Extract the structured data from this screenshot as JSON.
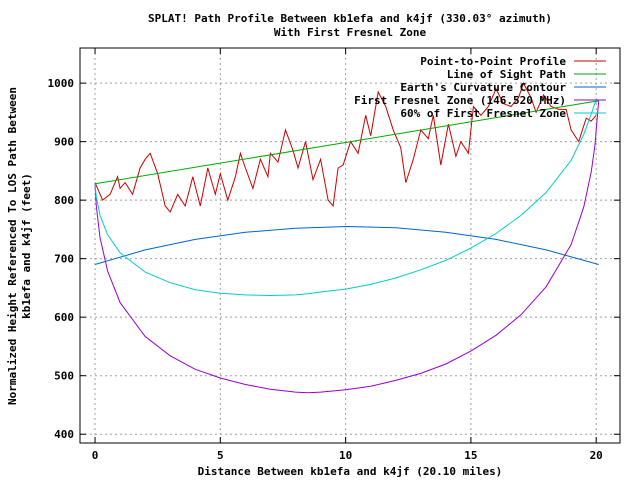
{
  "chart_data": {
    "type": "line",
    "title": "SPLAT! Path Profile Between kb1efa and k4jf (330.03° azimuth)",
    "subtitle": "With First Fresnel Zone",
    "xlabel": "Distance Between kb1efa and k4jf (20.10 miles)",
    "ylabel_line1": "Normalized Height Referenced To LOS Path Between",
    "ylabel_line2": "kb1efa and k4jf (feet)",
    "xlim": [
      -0.6,
      20.95
    ],
    "ylim": [
      385,
      1060
    ],
    "xticks": [
      0,
      5,
      10,
      15,
      20
    ],
    "yticks": [
      400,
      500,
      600,
      700,
      800,
      900,
      1000
    ],
    "grid": true,
    "legend_position": "top-right",
    "series": [
      {
        "name": "Point-to-Point Profile",
        "color": "#cc0000",
        "x": [
          0,
          0.3,
          0.6,
          0.9,
          1.0,
          1.2,
          1.5,
          1.8,
          2.0,
          2.2,
          2.5,
          2.8,
          3.0,
          3.3,
          3.6,
          3.9,
          4.2,
          4.5,
          4.8,
          5.0,
          5.3,
          5.6,
          5.8,
          6.0,
          6.3,
          6.6,
          6.9,
          7.0,
          7.3,
          7.6,
          7.9,
          8.1,
          8.4,
          8.7,
          9.0,
          9.3,
          9.5,
          9.7,
          9.9,
          10.2,
          10.5,
          10.8,
          11.0,
          11.3,
          11.6,
          11.9,
          12.2,
          12.4,
          12.7,
          13.0,
          13.3,
          13.5,
          13.8,
          14.1,
          14.4,
          14.6,
          14.9,
          15.1,
          15.4,
          15.7,
          16.0,
          16.3,
          16.6,
          16.9,
          17.1,
          17.4,
          17.6,
          17.9,
          18.2,
          18.5,
          18.8,
          19.0,
          19.3,
          19.6,
          19.8,
          20.0
        ],
        "y": [
          830,
          800,
          810,
          840,
          820,
          830,
          810,
          855,
          870,
          880,
          845,
          790,
          780,
          810,
          790,
          840,
          790,
          855,
          810,
          845,
          800,
          840,
          880,
          855,
          820,
          870,
          840,
          880,
          865,
          920,
          885,
          855,
          900,
          835,
          870,
          800,
          790,
          855,
          860,
          900,
          880,
          945,
          910,
          985,
          960,
          920,
          890,
          830,
          870,
          920,
          905,
          945,
          860,
          930,
          875,
          900,
          880,
          960,
          945,
          960,
          990,
          965,
          960,
          975,
          1000,
          975,
          950,
          980,
          960,
          955,
          955,
          920,
          900,
          940,
          935,
          945
        ]
      },
      {
        "name": "Line of Sight Path",
        "color": "#00aa00",
        "x": [
          0,
          20.1
        ],
        "y": [
          828,
          970
        ]
      },
      {
        "name": "Earth's Curvature Contour",
        "color": "#0066cc",
        "x": [
          0,
          2,
          4,
          6,
          8,
          10.05,
          12,
          14,
          16,
          18,
          20.1
        ],
        "y": [
          690,
          715,
          733,
          745,
          752,
          755,
          753,
          745,
          733,
          715,
          690
        ]
      },
      {
        "name": "First Fresnel Zone (146.520 MHz)",
        "color": "#9900cc",
        "x": [
          0,
          0.05,
          0.2,
          0.5,
          1,
          2,
          3,
          4,
          5,
          6,
          7,
          8,
          8.5,
          9,
          10,
          11,
          12,
          13,
          14,
          15,
          16,
          17,
          18,
          19,
          19.5,
          19.8,
          19.95,
          20.1
        ],
        "y": [
          828,
          790,
          736,
          679,
          625,
          567,
          534,
          511,
          496,
          485,
          477,
          472,
          471,
          472,
          476,
          482,
          492,
          504,
          520,
          542,
          569,
          604,
          652,
          724,
          788,
          848,
          893,
          970
        ]
      },
      {
        "name": "60% of First Fresnel Zone",
        "color": "#00cccc",
        "x": [
          0,
          0.05,
          0.2,
          0.5,
          1,
          2,
          3,
          4,
          5,
          6,
          7,
          8,
          8.5,
          9,
          10,
          11,
          12,
          13,
          14,
          15,
          16,
          17,
          18,
          19,
          19.5,
          19.8,
          19.95,
          20.1
        ],
        "y": [
          828,
          806,
          774,
          741,
          710,
          677,
          659,
          647,
          641,
          638,
          637,
          638,
          640,
          643,
          648,
          656,
          667,
          681,
          697,
          718,
          743,
          774,
          813,
          868,
          912,
          947,
          966,
          970
        ]
      }
    ]
  }
}
